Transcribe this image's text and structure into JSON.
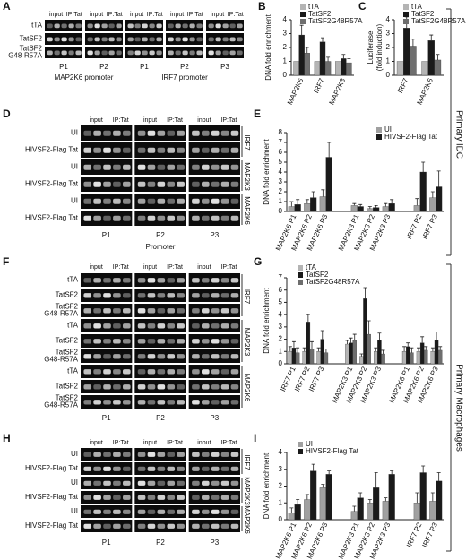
{
  "side_labels": [
    "Primary iDC",
    "Primary Macrophages"
  ],
  "gels": [
    {
      "panel": "A",
      "groups": [
        {
          "headers": [
            "input",
            "IP:Tat"
          ],
          "lane": "P1"
        },
        {
          "headers": [
            "input",
            "IP:Tat"
          ],
          "lane": "P2"
        },
        {
          "headers": [
            "input",
            "IP:Tat"
          ],
          "lane": "P1"
        },
        {
          "headers": [
            "input",
            "IP:Tat"
          ],
          "lane": "P2"
        },
        {
          "headers": [
            "input",
            "IP:Tat"
          ],
          "lane": "P3"
        }
      ],
      "rows": [
        "tTA",
        "TatSF2",
        [
          "TatSF2",
          "G48-R57A"
        ]
      ],
      "captions": [
        "MAP2K6 promoter",
        "IRF7 promoter"
      ]
    },
    {
      "panel": "D",
      "groups": [
        {
          "headers": [
            "input",
            "IP:Tat"
          ],
          "lane": "P1"
        },
        {
          "headers": [
            "input",
            "IP:Tat"
          ],
          "lane": "P2"
        },
        {
          "headers": [
            "input",
            "IP:Tat"
          ],
          "lane": "P3"
        }
      ],
      "rows": [
        "UI",
        "HIVSF2-Flag Tat",
        "UI",
        "HIVSF2-Flag Tat",
        "UI",
        "HIVSF2-Flag Tat"
      ],
      "genes": [
        "IRF7",
        "MAP2K3",
        "MAP2K6"
      ],
      "captions": [
        "Promoter"
      ]
    },
    {
      "panel": "F",
      "groups": [
        {
          "headers": [
            "input",
            "IP:Tat"
          ],
          "lane": "P1"
        },
        {
          "headers": [
            "input",
            "IP:Tat"
          ],
          "lane": "P2"
        },
        {
          "headers": [
            "input",
            "IP:Tat"
          ],
          "lane": "P3"
        }
      ],
      "rows": [
        "tTA",
        "TatSF2",
        [
          "TatSF2",
          "G48-R57A"
        ],
        "tTA",
        "TatSF2",
        [
          "TatSF2",
          "G48-R57A"
        ],
        "tTA",
        "TatSF2",
        [
          "TatSF2",
          "G48-R57A"
        ]
      ],
      "genes": [
        "IRF7",
        "MAP2K3",
        "MAP2K6"
      ]
    },
    {
      "panel": "H",
      "groups": [
        {
          "headers": [
            "input",
            "IP:Tat"
          ],
          "lane": "P1"
        },
        {
          "headers": [
            "input",
            "IP:Tat"
          ],
          "lane": "P2"
        },
        {
          "headers": [
            "input",
            "IP:Tat"
          ],
          "lane": "P3"
        }
      ],
      "rows": [
        "UI",
        "HIVSF2-Flag Tat",
        "UI",
        "HIVSF2-Flag Tat",
        "UI",
        "HIVSF2-Flag Tat"
      ],
      "genes": [
        "IRF7",
        "MAP2K3",
        "MAP2K6"
      ]
    }
  ],
  "chart_data": [
    {
      "type": "bar",
      "panel": "B",
      "ylabel": "DNA fold enrichment",
      "categories": [
        "MAP2K6",
        "IRF7",
        "MAP2K3"
      ],
      "ylim": [
        0,
        4
      ],
      "yticks": [
        0,
        1,
        2,
        3,
        4
      ],
      "series": [
        {
          "name": "tTA",
          "color": "#b4b4b4",
          "values": [
            1,
            1,
            1
          ]
        },
        {
          "name": "TatSF2",
          "color": "#1a1a1a",
          "values": [
            2.9,
            2.4,
            1.2
          ],
          "errors": [
            0.7,
            0.3,
            0.3
          ]
        },
        {
          "name": "TatSF2G48R57A",
          "color": "#6e6e6e",
          "values": [
            1.6,
            1.0,
            0.9
          ],
          "errors": [
            0.4,
            0.3,
            0.3
          ]
        }
      ]
    },
    {
      "type": "bar",
      "panel": "C",
      "ylabel": [
        "Luciferase",
        "(fold induction)"
      ],
      "categories": [
        "IRF7",
        "MAP2K6"
      ],
      "ylim": [
        0,
        4
      ],
      "yticks": [
        0,
        1,
        2,
        3,
        4
      ],
      "series": [
        {
          "name": "tTA",
          "color": "#b4b4b4",
          "values": [
            1,
            1
          ]
        },
        {
          "name": "TatSF2",
          "color": "#1a1a1a",
          "values": [
            3.4,
            2.5
          ],
          "errors": [
            0.8,
            0.4
          ]
        },
        {
          "name": "TatSF2G48R57A",
          "color": "#6e6e6e",
          "values": [
            2.1,
            1.1
          ],
          "errors": [
            0.5,
            0.4
          ]
        }
      ]
    },
    {
      "type": "bar",
      "panel": "E",
      "ylabel": "DNA fold enrichment",
      "categories": [
        "MAP2K6 P1",
        "MAP2K6 P2",
        "MAP2K6 P3",
        null,
        "MAP2K3 P1",
        "MAP2K3 P2",
        "MAP2K3 P3",
        null,
        "IRF7 P2",
        "IRF7 P3"
      ],
      "ylim": [
        0,
        8
      ],
      "yticks": [
        0,
        1,
        2,
        3,
        4,
        5,
        6,
        7,
        8
      ],
      "series": [
        {
          "name": "UI",
          "color": "#a0a0a0",
          "values": [
            0.5,
            0.8,
            1.5,
            null,
            0.6,
            0.3,
            0.5,
            null,
            0.6,
            1.4
          ],
          "errors": [
            0.5,
            0.4,
            0.7,
            null,
            0.2,
            0.2,
            0.3,
            null,
            0.7,
            0.6
          ]
        },
        {
          "name": "HIVSF2-Flag Tat",
          "color": "#1a1a1a",
          "values": [
            0.7,
            1.4,
            5.5,
            null,
            0.5,
            0.4,
            0.8,
            null,
            4.0,
            2.5
          ],
          "errors": [
            0.5,
            0.6,
            1.5,
            null,
            0.2,
            0.2,
            0.4,
            null,
            1.0,
            1.6
          ]
        }
      ]
    },
    {
      "type": "bar",
      "panel": "G",
      "ylabel": "DNA fold enrichment",
      "categories": [
        "IRF7 P1",
        "IRF7 P2",
        "IRF7 P3",
        null,
        "MAP2K3 P1",
        "MAP2K3 P2",
        "MAP2K3 P3",
        null,
        "MAP2K6 P1",
        "MAP2K6 P2",
        "MAP2K6 P3"
      ],
      "ylim": [
        0,
        7
      ],
      "yticks": [
        0,
        1,
        2,
        3,
        4,
        5,
        6,
        7
      ],
      "series": [
        {
          "name": "tTA",
          "color": "#b4b4b4",
          "values": [
            1,
            1,
            1,
            null,
            1.6,
            0.6,
            1,
            null,
            1,
            1,
            1
          ],
          "errors": [
            0.4,
            0.3,
            0.3,
            null,
            0.3,
            0.2,
            0.3,
            null,
            0.4,
            0.3,
            0.3
          ]
        },
        {
          "name": "TatSF2",
          "color": "#1a1a1a",
          "values": [
            1.3,
            3.4,
            2.0,
            null,
            1.7,
            5.3,
            1.9,
            null,
            1.4,
            1.7,
            1.9
          ],
          "errors": [
            0.5,
            0.6,
            0.7,
            null,
            0.4,
            0.9,
            0.6,
            null,
            0.3,
            0.5,
            0.7
          ]
        },
        {
          "name": "TatSF2G48R57A",
          "color": "#6e6e6e",
          "values": [
            0.9,
            1.2,
            0.9,
            null,
            1.9,
            2.4,
            0.8,
            null,
            0.9,
            1.1,
            1.1
          ],
          "errors": [
            0.4,
            0.6,
            0.3,
            null,
            0.5,
            1.1,
            0.3,
            null,
            0.4,
            0.3,
            0.3
          ]
        }
      ]
    },
    {
      "type": "bar",
      "panel": "I",
      "ylabel": "DNA fold enrichment",
      "categories": [
        "MAP2K6 P1",
        "MAP2K6 P2",
        "MAP2K6 P3",
        null,
        "MAP2K3 P1",
        "MAP2K3 P2",
        "MAP2K3 P3",
        null,
        "IRF7 P2",
        "IRF7 P3"
      ],
      "ylim": [
        0,
        4
      ],
      "yticks": [
        0,
        1,
        2,
        3,
        4
      ],
      "series": [
        {
          "name": "UI",
          "color": "#a0a0a0",
          "values": [
            0.4,
            1.2,
            1.9,
            null,
            0.5,
            1.0,
            1.1,
            null,
            1.0,
            1.1
          ],
          "errors": [
            0.3,
            0.3,
            0.2,
            null,
            0.3,
            0.2,
            0.2,
            null,
            0.6,
            0.5
          ]
        },
        {
          "name": "HIVSF2-Flag Tat",
          "color": "#1a1a1a",
          "values": [
            0.9,
            2.9,
            2.7,
            null,
            1.3,
            1.9,
            2.7,
            null,
            2.8,
            2.3
          ],
          "errors": [
            0.3,
            0.4,
            0.2,
            null,
            0.3,
            0.9,
            0.2,
            null,
            0.4,
            0.5
          ]
        }
      ]
    }
  ]
}
